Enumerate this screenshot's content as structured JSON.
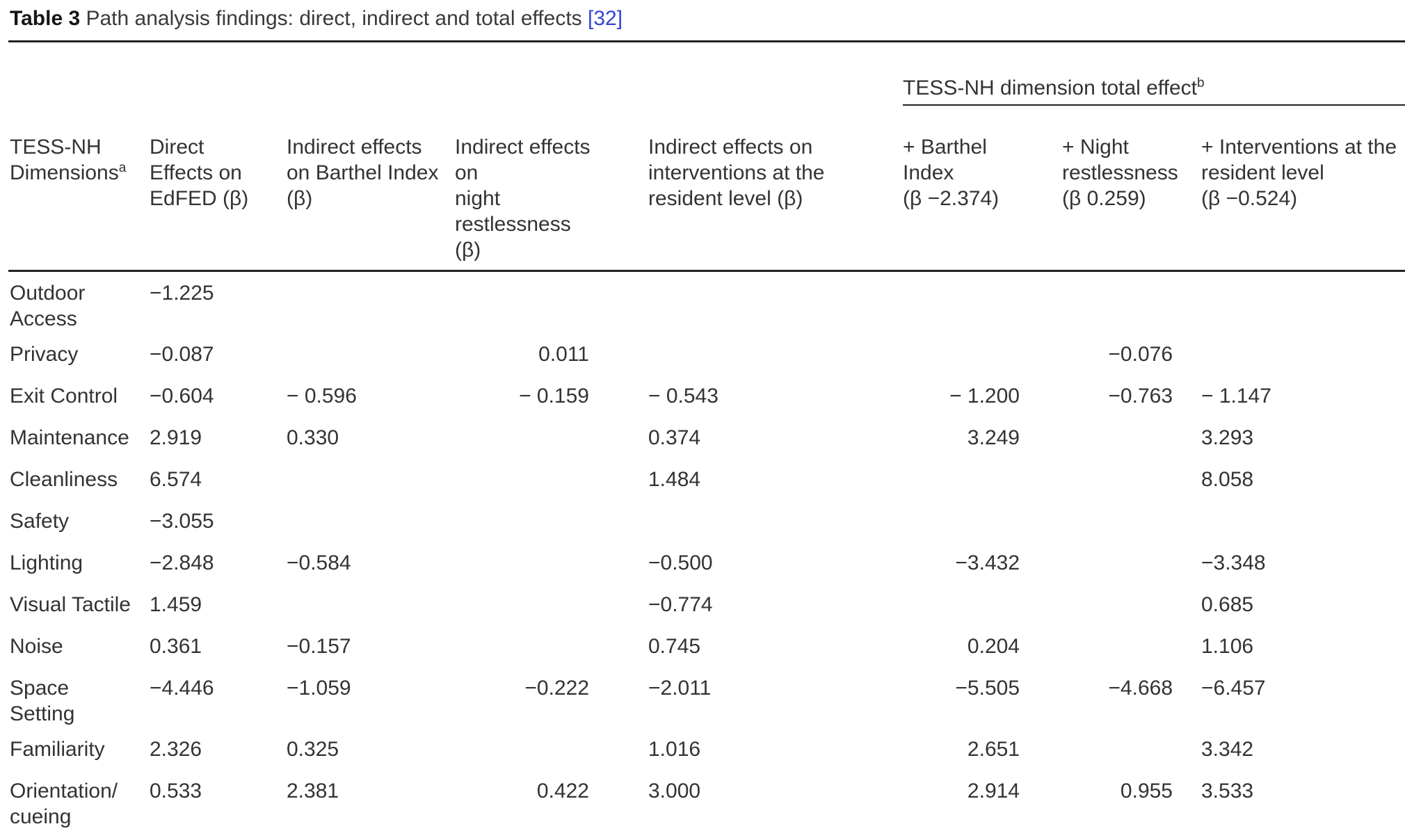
{
  "title": {
    "label": "Table 3",
    "caption": " Path analysis findings: direct, indirect and total effects ",
    "citation": "[32]"
  },
  "header": {
    "spanner": {
      "text": "TESS-NH dimension total effect",
      "sup": "b"
    },
    "columns": [
      {
        "text": "TESS-NH\nDimensions",
        "sup": "a"
      },
      {
        "text": "Direct\nEffects on\nEdFED (β)"
      },
      {
        "text": "Indirect effects\non Barthel Index\n(β)"
      },
      {
        "text": "Indirect effects on\nnight restlessness\n(β)"
      },
      {
        "text": "Indirect effects on\ninterventions at the\nresident level (β)"
      },
      {
        "text": "+ Barthel Index\n(β −2.374)"
      },
      {
        "text": "+ Night\nrestlessness\n(β 0.259)"
      },
      {
        "text": "+ Interventions at the\nresident level\n(β −0.524)"
      }
    ]
  },
  "rows": [
    {
      "label": "Outdoor\nAccess",
      "values": [
        "−1.225",
        "",
        "",
        "",
        "",
        "",
        ""
      ]
    },
    {
      "label": "Privacy",
      "values": [
        "−0.087",
        "",
        "0.011",
        "",
        "",
        "−0.076",
        ""
      ]
    },
    {
      "label": "Exit Control",
      "values": [
        "−0.604",
        "− 0.596",
        "− 0.159",
        "− 0.543",
        "− 1.200",
        "−0.763",
        "− 1.147"
      ]
    },
    {
      "label": "Maintenance",
      "values": [
        "2.919",
        "0.330",
        "",
        "0.374",
        "3.249",
        "",
        "3.293"
      ]
    },
    {
      "label": "Cleanliness",
      "values": [
        "6.574",
        "",
        "",
        "1.484",
        "",
        "",
        "8.058"
      ]
    },
    {
      "label": "Safety",
      "values": [
        "−3.055",
        "",
        "",
        "",
        "",
        "",
        ""
      ]
    },
    {
      "label": "Lighting",
      "values": [
        "−2.848",
        "−0.584",
        "",
        "−0.500",
        "−3.432",
        "",
        "−3.348"
      ]
    },
    {
      "label": "Visual Tactile",
      "values": [
        "1.459",
        "",
        "",
        "−0.774",
        "",
        "",
        "0.685"
      ]
    },
    {
      "label": "Noise",
      "values": [
        "0.361",
        "−0.157",
        "",
        "0.745",
        "0.204",
        "",
        "1.106"
      ]
    },
    {
      "label": "Space\nSetting",
      "values": [
        "−4.446",
        "−1.059",
        "−0.222",
        "−2.011",
        "−5.505",
        "−4.668",
        "−6.457"
      ]
    },
    {
      "label": "Familiarity",
      "values": [
        "2.326",
        "0.325",
        "",
        "1.016",
        "2.651",
        "",
        "3.342"
      ]
    },
    {
      "label": "Orientation/\ncueing",
      "values": [
        "0.533",
        "2.381",
        "0.422",
        "3.000",
        "2.914",
        "0.955",
        "3.533"
      ]
    }
  ]
}
